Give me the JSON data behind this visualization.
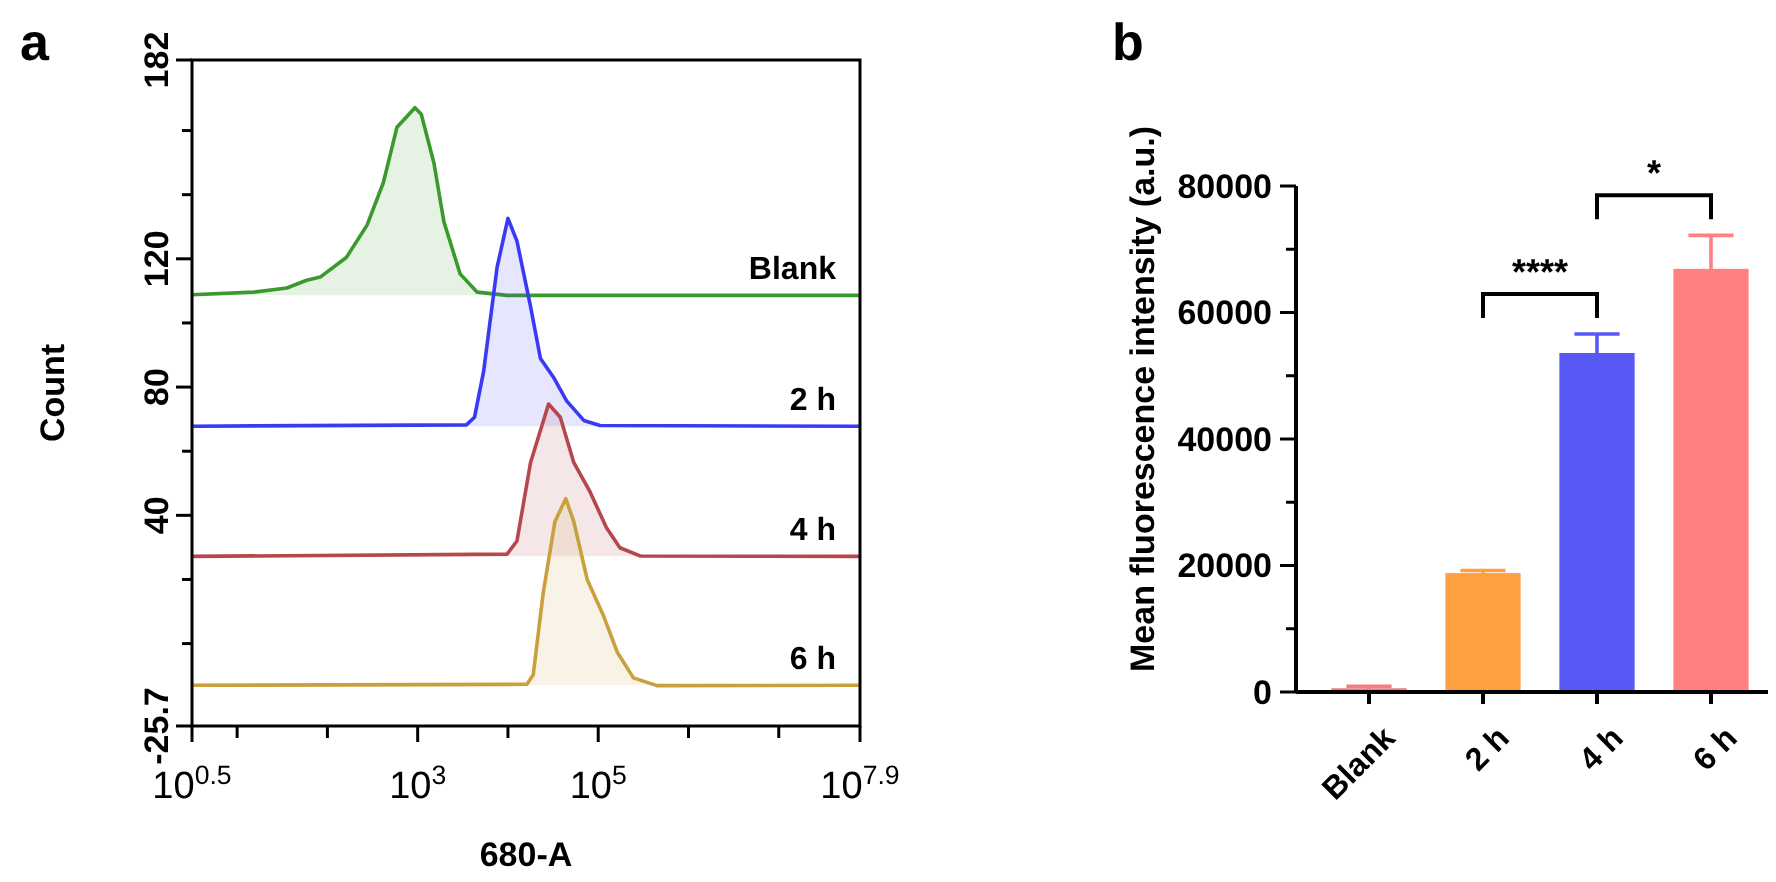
{
  "chart_data": [
    {
      "type": "line",
      "title": "a",
      "xlabel": "680-A",
      "ylabel": "Count",
      "log": "x",
      "xlim": [
        3.1623,
        79432823
      ],
      "xticks": [
        {
          "value": 3.1623,
          "label": "10$^{0.5}$"
        },
        {
          "value": 10,
          "label": null
        },
        {
          "value": 100,
          "label": null
        },
        {
          "value": 1000,
          "label": "10$^{3}$"
        },
        {
          "value": 10000,
          "label": null
        },
        {
          "value": 100000,
          "label": "10$^{5}$"
        },
        {
          "value": 1000000,
          "label": null
        },
        {
          "value": 10000000,
          "label": null
        },
        {
          "value": 79432823,
          "label": "10$^{7.9}$"
        }
      ],
      "ylim": [
        -25.7,
        182
      ],
      "yticks": [
        -25.7,
        {
          "value": 0,
          "label": null
        },
        {
          "value": 20,
          "label": null
        },
        40,
        {
          "value": 60,
          "label": null
        },
        80,
        {
          "value": 100,
          "label": null
        },
        120,
        {
          "value": 140,
          "label": null
        },
        {
          "value": 160,
          "label": null
        },
        182
      ],
      "grid": false,
      "series": [
        {
          "name": "Blank",
          "color": "#3a9a2e",
          "x": [
            3.1623,
            15.1,
            35.5,
            58.9,
            83.2,
            162,
            275,
            417,
            589,
            933,
            1096,
            1514,
            1950,
            2951,
            4571,
            9772,
            79432823
          ],
          "values": [
            108.8,
            109.6,
            110.9,
            113.3,
            114.3,
            120.4,
            130.5,
            143.8,
            161,
            167.1,
            165.1,
            149.9,
            131.6,
            115.3,
            109.6,
            108.6,
            108.6
          ]
        },
        {
          "name": "2 h",
          "color": "#3a3af5",
          "x": [
            3.1623,
            3467,
            4266,
            5370,
            7586,
            10000,
            12589,
            17783,
            22909,
            32359,
            44668,
            69183,
            104713,
            79432823
          ],
          "values": [
            67.8,
            68.2,
            70.6,
            84.8,
            117.4,
            132.6,
            125.5,
            105.2,
            88.9,
            82.8,
            75.7,
            69.6,
            68,
            67.8
          ]
        },
        {
          "name": "4 h",
          "color": "#b5474d",
          "x": [
            3.1623,
            9772,
            12589,
            17783,
            28184,
            38019,
            53703,
            81283,
            123027,
            173780,
            295121,
            79432823
          ],
          "values": [
            27.2,
            27.9,
            32,
            56.4,
            74.7,
            70.6,
            56.4,
            47.3,
            36.2,
            29.9,
            27.3,
            27.2
          ]
        },
        {
          "name": "6 h",
          "color": "#c9a03c",
          "x": [
            3.1623,
            16218,
            19055,
            24547,
            33113,
            43652,
            53703,
            75858,
            114815,
            162181,
            245471,
            446684,
            79432823
          ],
          "values": [
            -13,
            -12.7,
            -9.7,
            15.7,
            38,
            45.2,
            38,
            19.8,
            8.6,
            -2.6,
            -10.7,
            -13.1,
            -13
          ]
        }
      ]
    },
    {
      "type": "bar",
      "title": "b",
      "ylabel": "Mean fluorescence intensity (a.u.)",
      "categories": [
        "Blank",
        "2 h",
        "4 h",
        "6 h"
      ],
      "values": [
        600,
        18800,
        53600,
        66900
      ],
      "errors": [
        300,
        400,
        3000,
        5300
      ],
      "colors": [
        "#f57e7e",
        "#ffa040",
        "#5858f5",
        "#ff8080"
      ],
      "ylim": [
        0,
        80000
      ],
      "yticks": [
        0,
        {
          "value": 10000,
          "label": null
        },
        20000,
        {
          "value": 30000,
          "label": null
        },
        40000,
        {
          "value": 50000,
          "label": null
        },
        60000,
        {
          "value": 70000,
          "label": null
        },
        80000
      ],
      "grid": false,
      "annotations": [
        "****",
        "*"
      ]
    }
  ]
}
